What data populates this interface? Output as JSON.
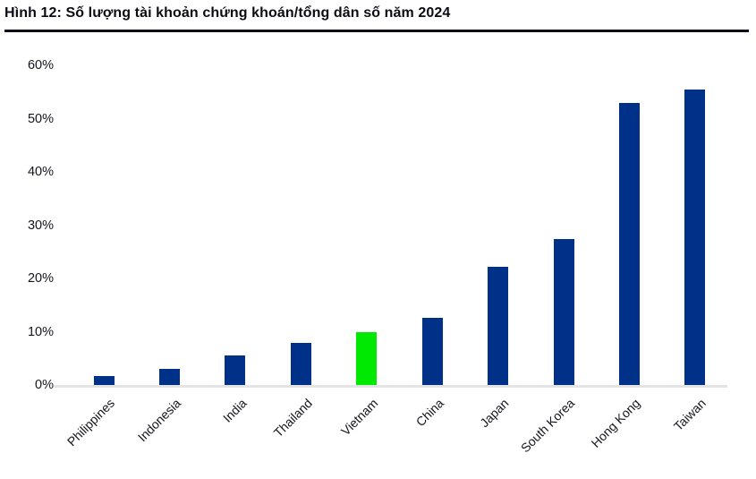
{
  "title": "Hình 12: Số lượng tài khoản chứng khoán/tổng dân số năm 2024",
  "chart_data": {
    "type": "bar",
    "title": "Hình 12: Số lượng tài khoản chứng khoán/tổng dân số năm 2024",
    "categories": [
      "Philippines",
      "Indonesia",
      "India",
      "Thailand",
      "Vietnam",
      "China",
      "Japan",
      "South Korea",
      "Hong Kong",
      "Taiwan"
    ],
    "values": [
      1.6,
      3.1,
      5.5,
      7.9,
      9.9,
      12.6,
      22.2,
      27.4,
      53.0,
      55.5
    ],
    "unit": "%",
    "highlight_category": "Vietnam",
    "bar_color": "#003189",
    "highlight_color": "#00e903",
    "axis_line_color": "#e4e4e4",
    "text_color": "#14141d",
    "y_tick_labels": [
      "60%",
      "50%",
      "40%",
      "30%",
      "20%",
      "10%",
      "0%"
    ],
    "ylim": [
      0,
      60
    ],
    "y_tick_step": 10,
    "xlabel": "",
    "ylabel": "",
    "grid": false,
    "legend": false,
    "x_label_rotation_deg": -45
  }
}
